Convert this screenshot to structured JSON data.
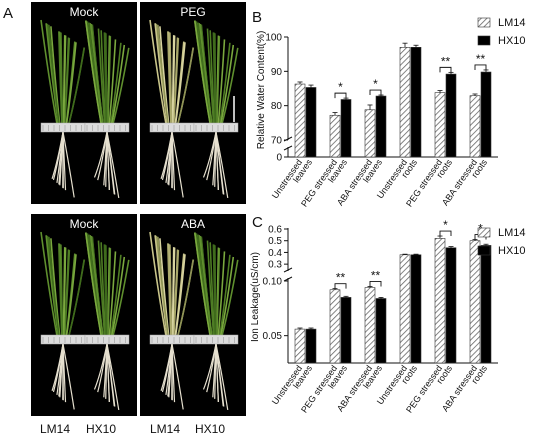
{
  "panel_a": {
    "letter": "A",
    "photos": [
      {
        "label": "Mock",
        "treatment": "mock"
      },
      {
        "label": "PEG",
        "treatment": "stress"
      },
      {
        "label": "Mock",
        "treatment": "mock"
      },
      {
        "label": "ABA",
        "treatment": "stress"
      }
    ],
    "bottom_labels": {
      "left_a": "LM14",
      "left_b": "HX10",
      "right_a": "LM14",
      "right_b": "HX10"
    }
  },
  "legend": {
    "lm14": "LM14",
    "hx10": "HX10"
  },
  "chart_data": [
    {
      "panel": "B",
      "type": "bar",
      "ylabel": "Relative Water Content(%)",
      "categories": [
        "Unstressed leaves",
        "PEG stressed leaves",
        "ABA stressed leaves",
        "Unstressed roots",
        "PEG stressed roots",
        "ABA stressed roots"
      ],
      "category_lines": [
        [
          "Unstressed",
          "leaves"
        ],
        [
          "PEG stressed",
          "leaves"
        ],
        [
          "ABA stressed",
          "leaves"
        ],
        [
          "Unstressed",
          "roots"
        ],
        [
          "PEG stressed",
          "roots"
        ],
        [
          "ABA stressed",
          "roots"
        ]
      ],
      "series": [
        {
          "name": "LM14",
          "values": [
            86.3,
            77.2,
            78.8,
            97.0,
            83.8,
            82.9
          ],
          "errors": [
            0.6,
            0.8,
            1.4,
            1.2,
            0.6,
            0.5
          ]
        },
        {
          "name": "HX10",
          "values": [
            85.3,
            81.8,
            82.8,
            97.0,
            89.2,
            89.8
          ],
          "errors": [
            0.7,
            0.4,
            0.3,
            0.6,
            0.5,
            0.6
          ]
        }
      ],
      "yticks": [
        "0",
        "70",
        "80",
        "90",
        "100"
      ],
      "axis_break": true,
      "significance": [
        "",
        "*",
        "*",
        "",
        "**",
        "**"
      ],
      "legend_position": "top-right"
    },
    {
      "panel": "C",
      "type": "bar",
      "ylabel": "Ion Leakage(uS/cm)",
      "categories": [
        "Unstressed leaves",
        "PEG stressed leaves",
        "ABA stressed leaves",
        "Unstressed roots",
        "PEG stressed roots",
        "ABA stressed roots"
      ],
      "category_lines": [
        [
          "Unstressed",
          "leaves"
        ],
        [
          "PEG stressed",
          "leaves"
        ],
        [
          "ABA stressed",
          "leaves"
        ],
        [
          "Unstressed",
          "roots"
        ],
        [
          "PEG stressed",
          "roots"
        ],
        [
          "ABA stressed",
          "roots"
        ]
      ],
      "series": [
        {
          "name": "LM14",
          "values": [
            0.056,
            0.092,
            0.094,
            0.38,
            0.52,
            0.5
          ],
          "errors": [
            0.001,
            0.001,
            0.001,
            0.005,
            0.02,
            0.01
          ]
        },
        {
          "name": "HX10",
          "values": [
            0.056,
            0.085,
            0.084,
            0.38,
            0.44,
            0.46
          ],
          "errors": [
            0.001,
            0.001,
            0.001,
            0.005,
            0.01,
            0.01
          ]
        }
      ],
      "yticks_lower": [
        "0.05",
        "0.10"
      ],
      "yticks_upper": [
        "0.3",
        "0.4",
        "0.5",
        "0.6"
      ],
      "axis_break": true,
      "significance": [
        "",
        "**",
        "**",
        "",
        "*",
        "*"
      ],
      "legend_position": "top-right"
    }
  ]
}
